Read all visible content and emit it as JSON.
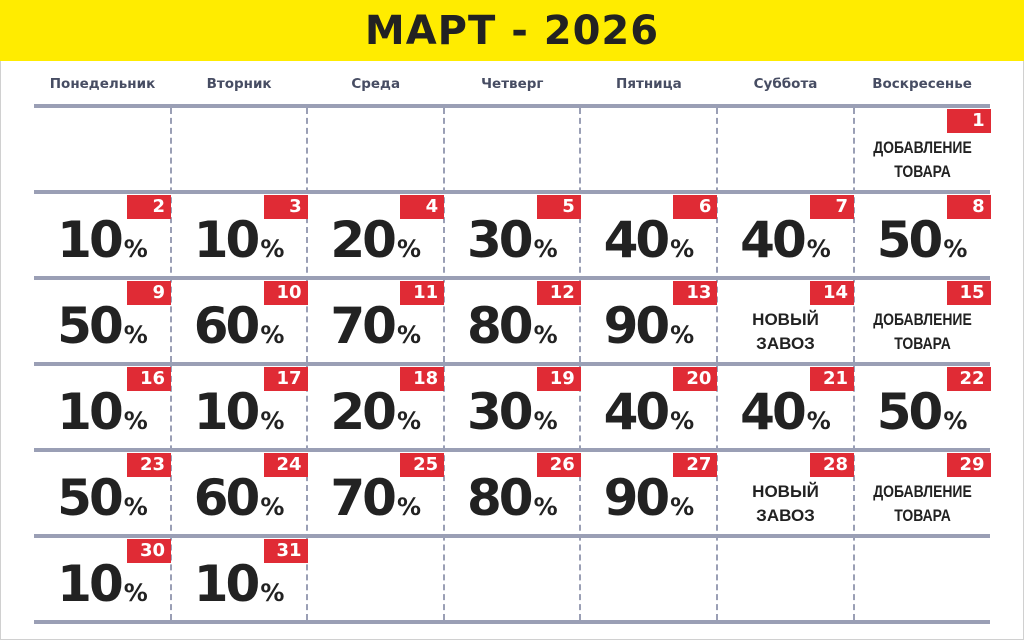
{
  "title": "МАРТ - 2026",
  "weekdays": [
    "Понедельник",
    "Вторник",
    "Среда",
    "Четверг",
    "Пятница",
    "Суббота",
    "Воскресенье"
  ],
  "colors": {
    "banner": "#ffec00",
    "badge": "#e02b35",
    "grid": "#9a9fb5",
    "text": "#222222"
  },
  "days": [
    null,
    null,
    null,
    null,
    null,
    null,
    {
      "day": "1",
      "lines": [
        "ДОБАВЛЕНИЕ",
        "ТОВАРА"
      ]
    },
    {
      "day": "2",
      "value": "10",
      "unit": "%"
    },
    {
      "day": "3",
      "value": "10",
      "unit": "%"
    },
    {
      "day": "4",
      "value": "20",
      "unit": "%"
    },
    {
      "day": "5",
      "value": "30",
      "unit": "%"
    },
    {
      "day": "6",
      "value": "40",
      "unit": "%"
    },
    {
      "day": "7",
      "value": "40",
      "unit": "%"
    },
    {
      "day": "8",
      "value": "50",
      "unit": "%"
    },
    {
      "day": "9",
      "value": "50",
      "unit": "%"
    },
    {
      "day": "10",
      "value": "60",
      "unit": "%"
    },
    {
      "day": "11",
      "value": "70",
      "unit": "%"
    },
    {
      "day": "12",
      "value": "80",
      "unit": "%"
    },
    {
      "day": "13",
      "value": "90",
      "unit": "%"
    },
    {
      "day": "14",
      "lines": [
        "НОВЫЙ",
        "ЗАВОЗ"
      ]
    },
    {
      "day": "15",
      "lines": [
        "ДОБАВЛЕНИЕ",
        "ТОВАРА"
      ]
    },
    {
      "day": "16",
      "value": "10",
      "unit": "%"
    },
    {
      "day": "17",
      "value": "10",
      "unit": "%"
    },
    {
      "day": "18",
      "value": "20",
      "unit": "%"
    },
    {
      "day": "19",
      "value": "30",
      "unit": "%"
    },
    {
      "day": "20",
      "value": "40",
      "unit": "%"
    },
    {
      "day": "21",
      "value": "40",
      "unit": "%"
    },
    {
      "day": "22",
      "value": "50",
      "unit": "%"
    },
    {
      "day": "23",
      "value": "50",
      "unit": "%"
    },
    {
      "day": "24",
      "value": "60",
      "unit": "%"
    },
    {
      "day": "25",
      "value": "70",
      "unit": "%"
    },
    {
      "day": "26",
      "value": "80",
      "unit": "%"
    },
    {
      "day": "27",
      "value": "90",
      "unit": "%"
    },
    {
      "day": "28",
      "lines": [
        "НОВЫЙ",
        "ЗАВОЗ"
      ]
    },
    {
      "day": "29",
      "lines": [
        "ДОБАВЛЕНИЕ",
        "ТОВАРА"
      ]
    },
    {
      "day": "30",
      "value": "10",
      "unit": "%"
    },
    {
      "day": "31",
      "value": "10",
      "unit": "%"
    },
    null,
    null,
    null,
    null,
    null
  ]
}
